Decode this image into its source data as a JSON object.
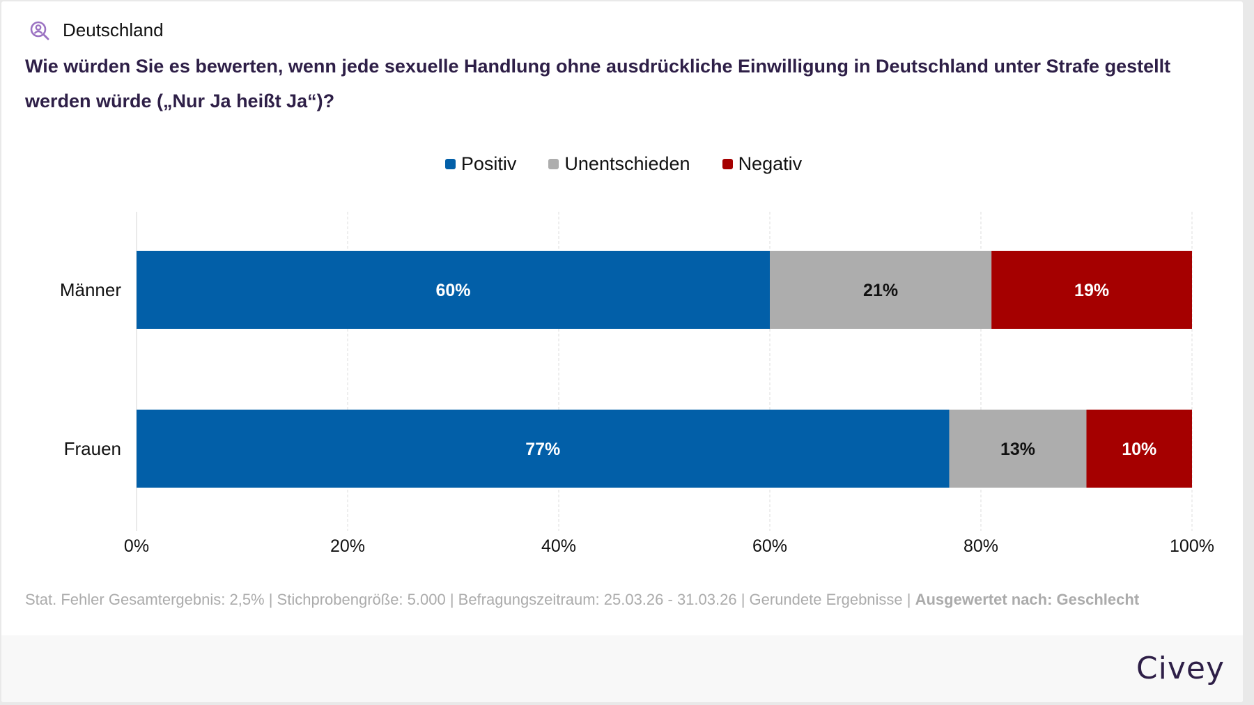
{
  "header": {
    "region_icon": "person-search-icon",
    "region": "Deutschland",
    "question": "Wie würden Sie es bewerten, wenn jede sexuelle Handlung ohne ausdrückliche Einwilligung in Deutschland unter Strafe gestellt werden würde („Nur Ja heißt Ja“)?"
  },
  "colors": {
    "positive": "#025fa8",
    "undecided": "#adadad",
    "negative": "#a50000",
    "accent": "#9b72c2",
    "title": "#2e1f47"
  },
  "chart_data": {
    "type": "bar",
    "orientation": "horizontal",
    "stacked": true,
    "title": "Wie würden Sie es bewerten, wenn jede sexuelle Handlung ohne ausdrückliche Einwilligung in Deutschland unter Strafe gestellt werden würde („Nur Ja heißt Ja“)?",
    "categories": [
      "Männer",
      "Frauen"
    ],
    "series": [
      {
        "name": "Positiv",
        "color": "#025fa8",
        "label_color": "#ffffff",
        "values": [
          60,
          77
        ]
      },
      {
        "name": "Unentschieden",
        "color": "#adadad",
        "label_color": "#111111",
        "values": [
          21,
          13
        ]
      },
      {
        "name": "Negativ",
        "color": "#a50000",
        "label_color": "#ffffff",
        "values": [
          19,
          10
        ]
      }
    ],
    "value_suffix": "%",
    "xlim": [
      0,
      100
    ],
    "xticks": [
      0,
      20,
      40,
      60,
      80,
      100
    ],
    "xtick_labels": [
      "0%",
      "20%",
      "40%",
      "60%",
      "80%",
      "100%"
    ],
    "xlabel": "",
    "ylabel": "",
    "grid": true,
    "legend_position": "top-center"
  },
  "footer": {
    "methodology": "Stat. Fehler Gesamtergebnis: 2,5% | Stichprobengröße: 5.000 | Befragungszeitraum: 25.03.26 - 31.03.26 | Gerundete Ergebnisse | ",
    "breakdown": "Ausgewertet nach: Geschlecht",
    "brand": "Civey"
  }
}
